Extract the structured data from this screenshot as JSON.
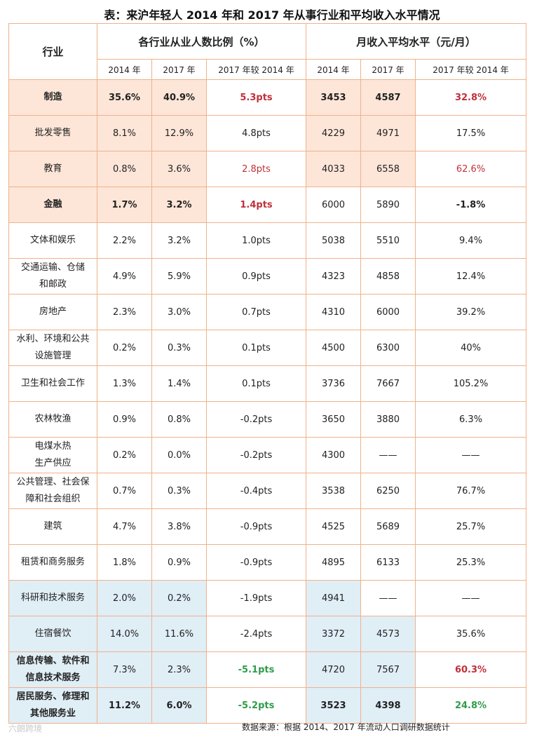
{
  "title": "表：来沪年轻人 2014 年和 2017 年从事行业和平均收入水平情况",
  "header": {
    "industry": "行业",
    "group1": "各行业从业人数比例（%）",
    "group2": "月收入平均水平（元/月）",
    "sub": [
      "2014 年",
      "2017 年",
      "2017 年较 2014 年",
      "2014 年",
      "2017 年",
      "2017 年较 2014 年"
    ]
  },
  "rows": [
    {
      "industry": "制造",
      "p2014": "35.6%",
      "p2017": "40.9%",
      "pchg": "5.3pts",
      "i2014": "3453",
      "i2017": "4587",
      "ichg": "32.8%"
    },
    {
      "industry": "批发零售",
      "p2014": "8.1%",
      "p2017": "12.9%",
      "pchg": "4.8pts",
      "i2014": "4229",
      "i2017": "4971",
      "ichg": "17.5%"
    },
    {
      "industry": "教育",
      "p2014": "0.8%",
      "p2017": "3.6%",
      "pchg": "2.8pts",
      "i2014": "4033",
      "i2017": "6558",
      "ichg": "62.6%"
    },
    {
      "industry": "金融",
      "p2014": "1.7%",
      "p2017": "3.2%",
      "pchg": "1.4pts",
      "i2014": "6000",
      "i2017": "5890",
      "ichg": "-1.8%"
    },
    {
      "industry": "文体和娱乐",
      "p2014": "2.2%",
      "p2017": "3.2%",
      "pchg": "1.0pts",
      "i2014": "5038",
      "i2017": "5510",
      "ichg": "9.4%"
    },
    {
      "industry_l1": "交通运输、仓储",
      "industry_l2": "和邮政",
      "p2014": "4.9%",
      "p2017": "5.9%",
      "pchg": "0.9pts",
      "i2014": "4323",
      "i2017": "4858",
      "ichg": "12.4%"
    },
    {
      "industry": "房地产",
      "p2014": "2.3%",
      "p2017": "3.0%",
      "pchg": "0.7pts",
      "i2014": "4310",
      "i2017": "6000",
      "ichg": "39.2%"
    },
    {
      "industry_l1": "水利、环境和公共",
      "industry_l2": "设施管理",
      "p2014": "0.2%",
      "p2017": "0.3%",
      "pchg": "0.1pts",
      "i2014": "4500",
      "i2017": "6300",
      "ichg": "40%"
    },
    {
      "industry": "卫生和社会工作",
      "p2014": "1.3%",
      "p2017": "1.4%",
      "pchg": "0.1pts",
      "i2014": "3736",
      "i2017": "7667",
      "ichg": "105.2%"
    },
    {
      "industry": "农林牧渔",
      "p2014": "0.9%",
      "p2017": "0.8%",
      "pchg": "-0.2pts",
      "i2014": "3650",
      "i2017": "3880",
      "ichg": "6.3%"
    },
    {
      "industry_l1": "电煤水热",
      "industry_l2": "生产供应",
      "p2014": "0.2%",
      "p2017": "0.0%",
      "pchg": "-0.2pts",
      "i2014": "4300",
      "i2017": "——",
      "ichg": "——"
    },
    {
      "industry_l1": "公共管理、社会保",
      "industry_l2": "障和社会组织",
      "p2014": "0.7%",
      "p2017": "0.3%",
      "pchg": "-0.4pts",
      "i2014": "3538",
      "i2017": "6250",
      "ichg": "76.7%"
    },
    {
      "industry": "建筑",
      "p2014": "4.7%",
      "p2017": "3.8%",
      "pchg": "-0.9pts",
      "i2014": "4525",
      "i2017": "5689",
      "ichg": "25.7%"
    },
    {
      "industry": "租赁和商务服务",
      "p2014": "1.8%",
      "p2017": "0.9%",
      "pchg": "-0.9pts",
      "i2014": "4895",
      "i2017": "6133",
      "ichg": "25.3%"
    },
    {
      "industry": "科研和技术服务",
      "p2014": "2.0%",
      "p2017": "0.2%",
      "pchg": "-1.9pts",
      "i2014": "4941",
      "i2017": "——",
      "ichg": "——"
    },
    {
      "industry": "住宿餐饮",
      "p2014": "14.0%",
      "p2017": "11.6%",
      "pchg": "-2.4pts",
      "i2014": "3372",
      "i2017": "4573",
      "ichg": "35.6%"
    },
    {
      "industry_l1": "信息传输、软件和",
      "industry_l2": "信息技术服务",
      "p2014": "7.3%",
      "p2017": "2.3%",
      "pchg": "-5.1pts",
      "i2014": "4720",
      "i2017": "7567",
      "ichg": "60.3%"
    },
    {
      "industry_l1": "居民服务、修理和",
      "industry_l2": "其他服务业",
      "p2014": "11.2%",
      "p2017": "6.0%",
      "pchg": "-5.2pts",
      "i2014": "3523",
      "i2017": "4398",
      "ichg": "24.8%"
    }
  ],
  "source": "数据来源：根据 2014、2017 年流动人口调研数据统计",
  "watermark": "六朗跨境",
  "colors": {
    "highlight_orange": "#fde6d8",
    "highlight_blue": "#e0eef6",
    "red": "#c0303a",
    "green": "#2f9c4a",
    "border": "#f0b28a"
  }
}
